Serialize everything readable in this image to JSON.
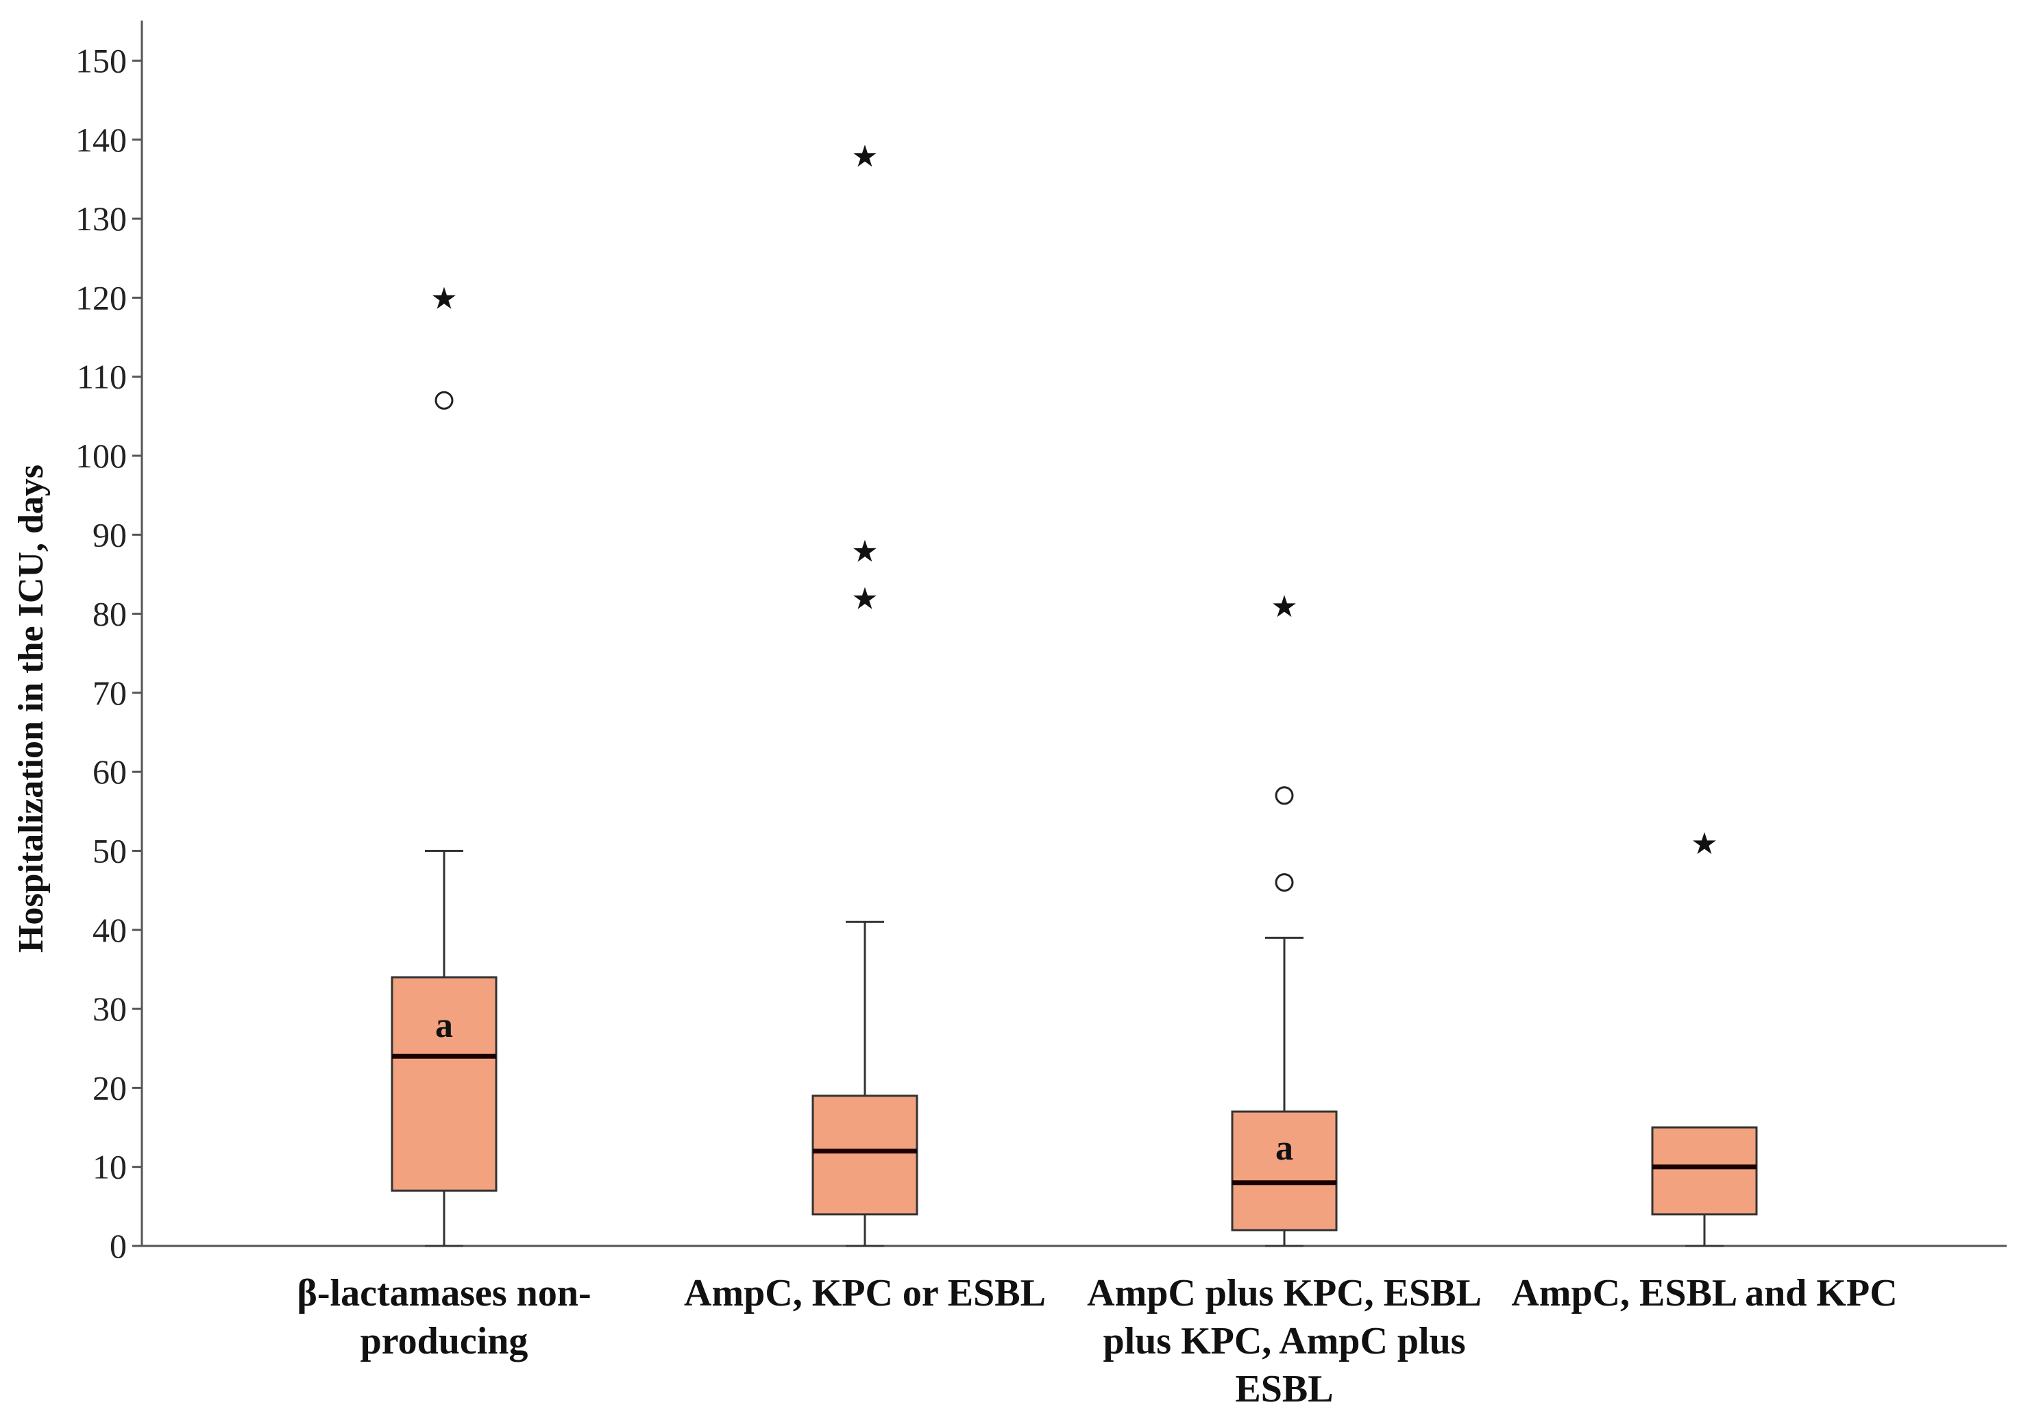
{
  "chart_data": {
    "type": "boxplot",
    "title": "",
    "xlabel": "",
    "ylabel": "Hospitalization in the ICU, days",
    "ylim": [
      0,
      155
    ],
    "yticks": [
      0,
      10,
      20,
      30,
      40,
      50,
      60,
      70,
      80,
      90,
      100,
      110,
      120,
      130,
      140,
      150
    ],
    "grid": false,
    "legend": "none",
    "box_color": "#f2a27f",
    "median_color": "#1a0000",
    "line_color": "#333333",
    "categories": [
      [
        "β-lactamases non-",
        "producing"
      ],
      [
        "AmpC, KPC or ESBL"
      ],
      [
        "AmpC plus KPC, ESBL",
        "plus KPC, AmpC plus",
        "ESBL"
      ],
      [
        "AmpC, ESBL and KPC"
      ]
    ],
    "boxes": [
      {
        "min": 0,
        "q1": 7,
        "median": 24,
        "q3": 34,
        "max": 50,
        "outliers_circle": [
          107
        ],
        "outliers_extreme": [
          120
        ],
        "annotation": "a",
        "annotation_value": 28
      },
      {
        "min": 0,
        "q1": 4,
        "median": 12,
        "q3": 19,
        "max": 41,
        "outliers_circle": [],
        "outliers_extreme": [
          82,
          88,
          138
        ],
        "annotation": "",
        "annotation_value": null
      },
      {
        "min": 0,
        "q1": 2,
        "median": 8,
        "q3": 17,
        "max": 39,
        "outliers_circle": [
          46,
          57
        ],
        "outliers_extreme": [
          81
        ],
        "annotation": "a",
        "annotation_value": 12.5
      },
      {
        "min": 0,
        "q1": 4,
        "median": 10,
        "q3": 15,
        "max": 15,
        "outliers_circle": [],
        "outliers_extreme": [
          51
        ],
        "annotation": "",
        "annotation_value": null
      }
    ]
  }
}
